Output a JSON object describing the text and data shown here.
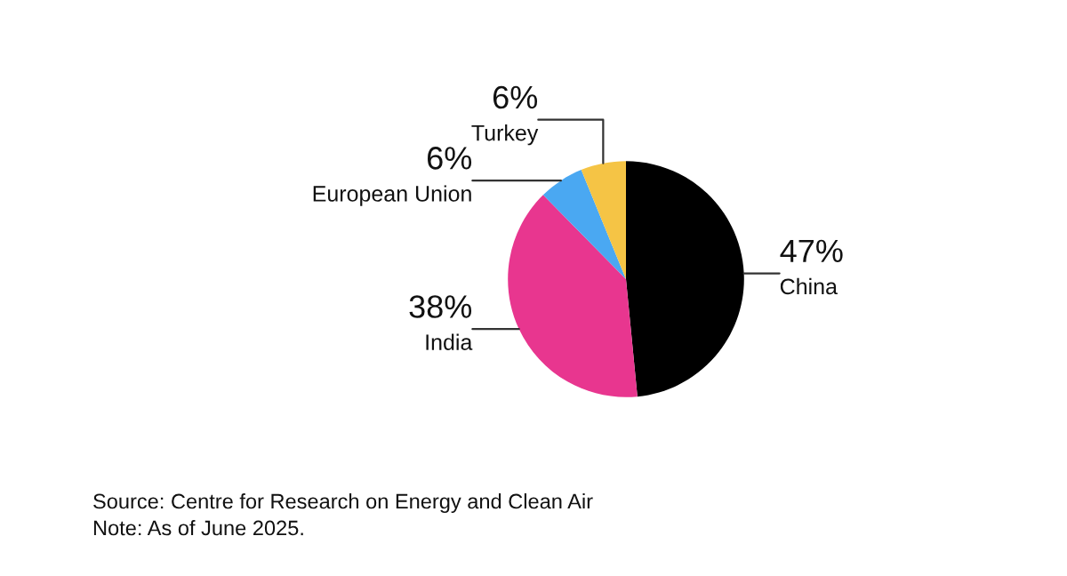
{
  "chart_data": {
    "type": "pie",
    "categories": [
      "China",
      "India",
      "European Union",
      "Turkey"
    ],
    "values": [
      47,
      38,
      6,
      6
    ],
    "colors": [
      "#000000",
      "#e8368f",
      "#4aa8f2",
      "#f5c445"
    ],
    "value_labels": [
      "47%",
      "38%",
      "6%",
      "6%"
    ],
    "annotations": [
      "Source: Centre for Research on Energy and Clean Air",
      "Note: As of June 2025."
    ]
  }
}
